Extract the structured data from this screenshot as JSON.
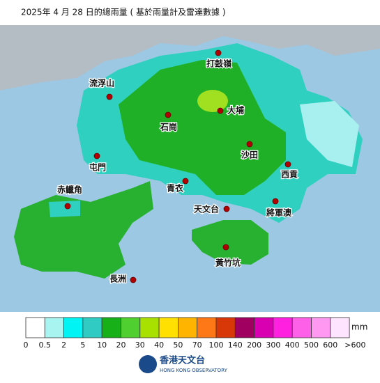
{
  "title": "2025年 4 月 28 日的總雨量 ( 基於雨量計及雷達數據 )",
  "stations": [
    "打鼓嶺",
    "流浮山",
    "大埔",
    "石崗",
    "沙田",
    "屯門",
    "西貢",
    "青衣",
    "赤鱲角",
    "天文台",
    "將軍澳",
    "黃竹坑",
    "長洲"
  ],
  "legend": {
    "unit": "mm",
    "labels": [
      "0",
      "0.5",
      "2",
      "5",
      "10",
      "20",
      "30",
      "40",
      "50",
      "70",
      "100",
      "140",
      "200",
      "300",
      "400",
      "500",
      "600",
      ">600"
    ],
    "colors": [
      "#ffffff",
      "#a8f4f0",
      "#00f4f4",
      "#30ccc4",
      "#18b018",
      "#50d030",
      "#a8e000",
      "#ffe000",
      "#ffb400",
      "#ff7818",
      "#d83808",
      "#a00060",
      "#d800b0",
      "#ff20e0",
      "#ff60e8",
      "#ff98f0",
      "#ffe4ff"
    ]
  },
  "logo": {
    "name": "香港天文台",
    "english": "HONG KONG OBSERVATORY"
  }
}
